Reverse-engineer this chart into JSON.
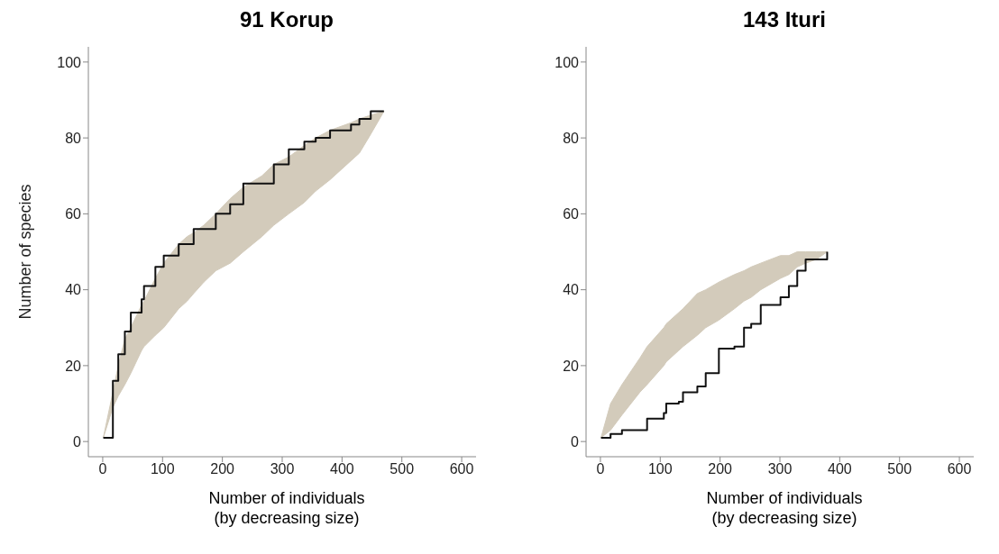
{
  "chart_data": [
    {
      "type": "line",
      "title": "91 Korup",
      "xlabel": "Number of individuals\n(by decreasing size)",
      "ylabel": "Number of species",
      "xlim": [
        -24,
        624
      ],
      "ylim": [
        -4,
        104
      ],
      "xticks": [
        0,
        100,
        200,
        300,
        400,
        500,
        600
      ],
      "yticks": [
        0,
        20,
        40,
        60,
        80,
        100
      ],
      "x": [
        1,
        17,
        26,
        37,
        47,
        65,
        69,
        88,
        102,
        127,
        141,
        152,
        169,
        189,
        213,
        235,
        266,
        286,
        311,
        337,
        356,
        380,
        415,
        429,
        448,
        470
      ],
      "series": [
        {
          "type": "step",
          "color": "#111111",
          "values": [
            1,
            16,
            23,
            29,
            34,
            37.5,
            41,
            46,
            49,
            52,
            52,
            56,
            56,
            60,
            62.5,
            68,
            68,
            73,
            77,
            79,
            80,
            82,
            83.5,
            85,
            87,
            87
          ],
          "lower": [
            1,
            9,
            12,
            15,
            18,
            24,
            25,
            28,
            30,
            35,
            37,
            39,
            42,
            45,
            47,
            50,
            54,
            57,
            60,
            63,
            66,
            69,
            74,
            76,
            81,
            87
          ],
          "upper": [
            1,
            13,
            20,
            27,
            30,
            36,
            37,
            43,
            47,
            52,
            54,
            55,
            57,
            60,
            64,
            67,
            70,
            73,
            75,
            78,
            80,
            82,
            84,
            85,
            86,
            87
          ]
        }
      ]
    },
    {
      "type": "line",
      "title": "143 Ituri",
      "xlabel": "Number of individuals\n(by decreasing size)",
      "xlim": [
        -24,
        624
      ],
      "ylim": [
        -4,
        104
      ],
      "xticks": [
        0,
        100,
        200,
        300,
        400,
        500,
        600
      ],
      "yticks": [
        0,
        20,
        40,
        60,
        80,
        100
      ],
      "x": [
        1,
        17,
        36,
        66,
        78,
        106,
        110,
        131,
        138,
        162,
        176,
        198,
        224,
        240,
        252,
        268,
        301,
        315,
        329,
        343,
        361,
        379
      ],
      "series": [
        {
          "type": "step",
          "color": "#111111",
          "values": [
            1,
            2,
            3,
            3,
            6,
            7.5,
            10,
            10.5,
            13,
            14.5,
            18,
            24.5,
            25,
            30,
            31,
            36,
            38,
            41,
            45,
            48,
            48,
            50
          ],
          "lower": [
            1,
            3,
            7,
            13,
            15,
            20,
            21,
            24,
            25,
            28,
            30,
            32,
            35,
            37,
            38,
            40,
            43,
            44,
            46,
            47,
            48,
            50
          ],
          "upper": [
            1,
            10,
            15,
            22,
            25,
            30,
            31,
            34,
            35,
            39,
            40,
            42,
            44,
            45,
            46,
            47,
            49,
            49,
            50,
            50,
            50,
            50
          ]
        }
      ]
    }
  ]
}
